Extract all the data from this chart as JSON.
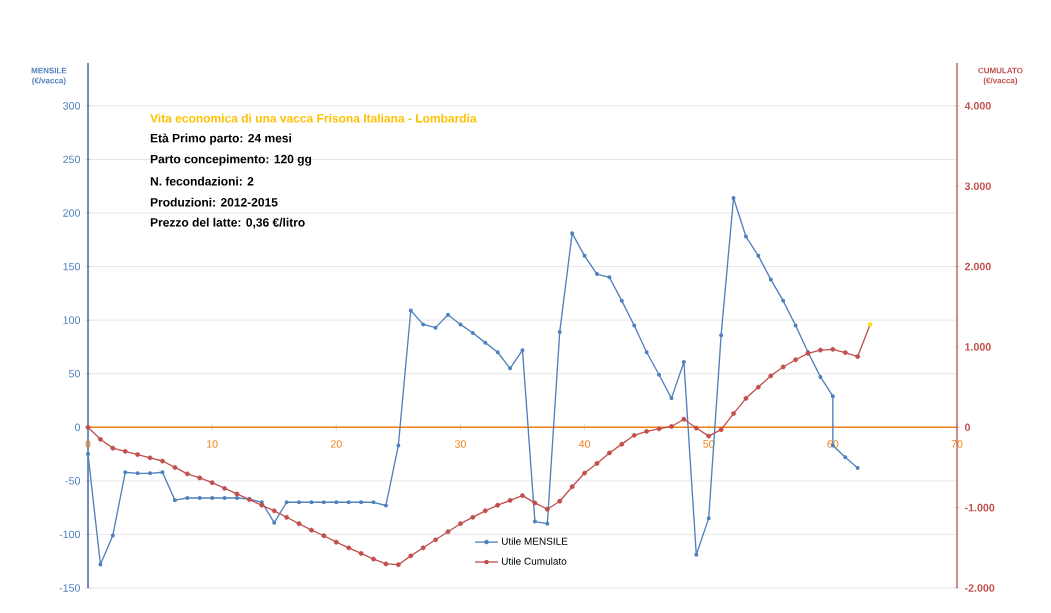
{
  "chart_data": {
    "type": "line",
    "title": "Vita economica di una vacca Frisona Italiana - Lombardia",
    "annotations": [
      "Età Primo parto: 24 mesi",
      "Parto concepimento: 120 gg",
      "N. fecondazioni: 2",
      "Produzioni: 2012-2015",
      "Prezzo del latte: 0,36 €/litro"
    ],
    "ylabel": "MENSILE (€/vacca)",
    "y2label": "CUMULATO (€/vacca)",
    "xlim": [
      0,
      70
    ],
    "xticks": [
      0,
      10,
      20,
      30,
      40,
      50,
      60,
      70
    ],
    "ylim": [
      -150,
      340
    ],
    "yticks": [
      -150,
      -100,
      -50,
      0,
      50,
      100,
      150,
      200,
      250,
      300
    ],
    "y2lim": [
      -2000,
      4533
    ],
    "y2ticks": [
      {
        "value": -2000,
        "label": "-2.000"
      },
      {
        "value": -1000,
        "label": "-1.000"
      },
      0,
      {
        "value": 1000,
        "label": "1.000"
      },
      {
        "value": 2000,
        "label": "2.000"
      },
      {
        "value": 3000,
        "label": "3.000"
      },
      {
        "value": 4000,
        "label": "4.000"
      }
    ],
    "grid": "y",
    "legend": "bottom",
    "marker": "circle",
    "series": [
      {
        "name": "Utile MENSILE",
        "color": "#4f81bd",
        "x": [
          0,
          1,
          2,
          3,
          4,
          5,
          6,
          7,
          8,
          9,
          10,
          11,
          12,
          13,
          14,
          15,
          16,
          17,
          18,
          19,
          20,
          21,
          22,
          23,
          24,
          25,
          26,
          27,
          28,
          29,
          30,
          31,
          32,
          33,
          34,
          35,
          36,
          37,
          38,
          39,
          40,
          41,
          42,
          43,
          44,
          45,
          46,
          47,
          48,
          49,
          50,
          51,
          52,
          53,
          54,
          55,
          56,
          57,
          58,
          59,
          60,
          60,
          61,
          62
        ],
        "values": [
          -25,
          -128,
          -101,
          -42,
          -43,
          -43,
          -42,
          -68,
          -66,
          -66,
          -66,
          -66,
          -66,
          -67,
          -70,
          -89,
          -70,
          -70,
          -70,
          -70,
          -70,
          -70,
          -70,
          -70,
          -73,
          -17,
          109,
          96,
          93,
          105,
          96,
          88,
          79,
          70,
          55,
          72,
          -88,
          -90,
          89,
          181,
          160,
          143,
          140,
          118,
          95,
          70,
          49,
          27,
          61,
          -119,
          -85,
          86,
          214,
          178,
          160,
          138,
          118,
          95,
          70,
          47,
          29,
          -17,
          -28,
          -38
        ]
      },
      {
        "name": "Utile Cumulato",
        "color": "#c0504d",
        "axis": "y2",
        "x": [
          0,
          1,
          2,
          3,
          4,
          5,
          6,
          7,
          8,
          9,
          10,
          11,
          12,
          13,
          14,
          15,
          16,
          17,
          18,
          19,
          20,
          21,
          22,
          23,
          24,
          25,
          26,
          27,
          28,
          29,
          30,
          31,
          32,
          33,
          34,
          35,
          36,
          37,
          38,
          39,
          40,
          41,
          42,
          43,
          44,
          45,
          46,
          47,
          48,
          49,
          50,
          51,
          52,
          53,
          54,
          55,
          56,
          57,
          58,
          59,
          60,
          61,
          62,
          63
        ],
        "values": [
          0,
          -150,
          -260,
          -300,
          -340,
          -380,
          -420,
          -500,
          -580,
          -630,
          -690,
          -760,
          -830,
          -900,
          -970,
          -1040,
          -1120,
          -1200,
          -1280,
          -1350,
          -1430,
          -1500,
          -1570,
          -1640,
          -1700,
          -1710,
          -1600,
          -1500,
          -1400,
          -1300,
          -1200,
          -1120,
          -1040,
          -970,
          -910,
          -850,
          -940,
          -1020,
          -920,
          -740,
          -570,
          -450,
          -320,
          -210,
          -100,
          -50,
          -20,
          10,
          100,
          -10,
          -110,
          -30,
          170,
          360,
          500,
          640,
          750,
          840,
          920,
          960,
          970,
          930,
          880,
          1280
        ],
        "colors": [
          "#c0504d",
          "#c0504d",
          "#c0504d",
          "#c0504d",
          "#c0504d",
          "#c0504d",
          "#c0504d",
          "#c0504d",
          "#c0504d",
          "#c0504d",
          "#c0504d",
          "#c0504d",
          "#c0504d",
          "#c0504d",
          "#c0504d",
          "#c0504d",
          "#c0504d",
          "#c0504d",
          "#c0504d",
          "#c0504d",
          "#c0504d",
          "#c0504d",
          "#c0504d",
          "#c0504d",
          "#c0504d",
          "#c0504d",
          "#c0504d",
          "#c0504d",
          "#c0504d",
          "#c0504d",
          "#c0504d",
          "#c0504d",
          "#c0504d",
          "#c0504d",
          "#c0504d",
          "#c0504d",
          "#c0504d",
          "#c0504d",
          "#c0504d",
          "#c0504d",
          "#c0504d",
          "#c0504d",
          "#c0504d",
          "#c0504d",
          "#c0504d",
          "#c0504d",
          "#c0504d",
          "#c0504d",
          "#c0504d",
          "#c0504d",
          "#c0504d",
          "#c0504d",
          "#c0504d",
          "#c0504d",
          "#c0504d",
          "#c0504d",
          "#c0504d",
          "#c0504d",
          "#c0504d",
          "#c0504d",
          "#c0504d",
          "#c0504d",
          "#c0504d",
          "#f2e01c"
        ]
      }
    ]
  }
}
